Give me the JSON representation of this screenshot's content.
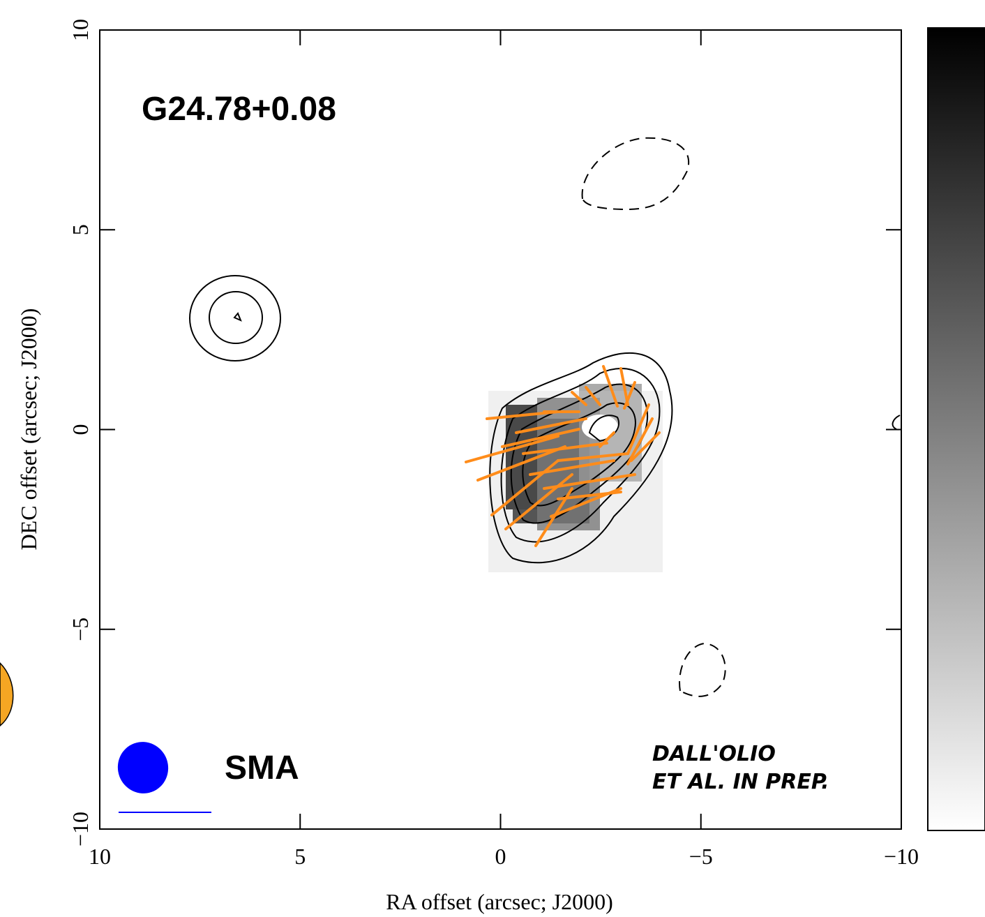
{
  "chart_data": {
    "type": "image",
    "title": "G24.78+0.08",
    "instrument": "SMA",
    "credit": [
      "Dall'Olio",
      "et al. in prep."
    ],
    "x_label": "RA offset (arcsec; J2000)",
    "y_label": "DEC offset (arcsec; J2000)",
    "xlim": [
      10,
      -10
    ],
    "ylim": [
      -10,
      10
    ],
    "xticks": [
      10,
      5,
      0,
      {
        "value": -5,
        "label": "−5"
      },
      {
        "value": -10,
        "label": "−10"
      }
    ],
    "yticks": [
      {
        "value": -10,
        "label": "−10"
      },
      {
        "value": -5,
        "label": "−5"
      },
      0,
      5,
      10
    ],
    "vector_color": "#ff8c1a",
    "beam_color": "#0000ff"
  }
}
